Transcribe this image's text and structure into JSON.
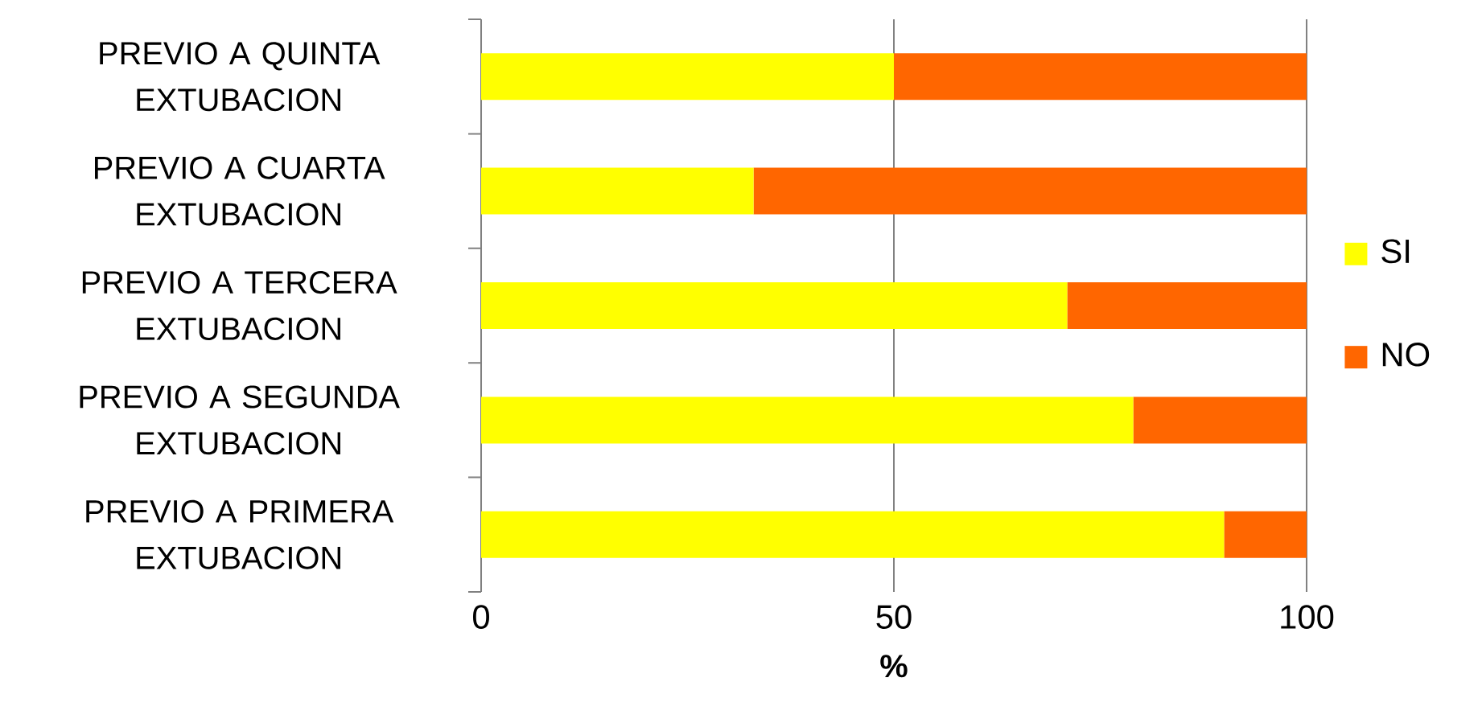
{
  "chart_data": {
    "type": "bar",
    "orientation": "horizontal",
    "stacked": true,
    "categories": [
      "PREVIO A QUINTA EXTUBACION",
      "PREVIO A CUARTA EXTUBACION",
      "PREVIO A TERCERA EXTUBACION",
      "PREVIO A SEGUNDA EXTUBACION",
      "PREVIO A PRIMERA EXTUBACION"
    ],
    "series": [
      {
        "name": "SI",
        "color": "#ffff00",
        "values": [
          50,
          33,
          71,
          79,
          90
        ]
      },
      {
        "name": "NO",
        "color": "#ff6600",
        "values": [
          50,
          67,
          29,
          21,
          10
        ]
      }
    ],
    "xlabel": "%",
    "xlim": [
      0,
      100
    ],
    "xticks": [
      0,
      50,
      100
    ],
    "grid": "x",
    "legend": "right"
  }
}
